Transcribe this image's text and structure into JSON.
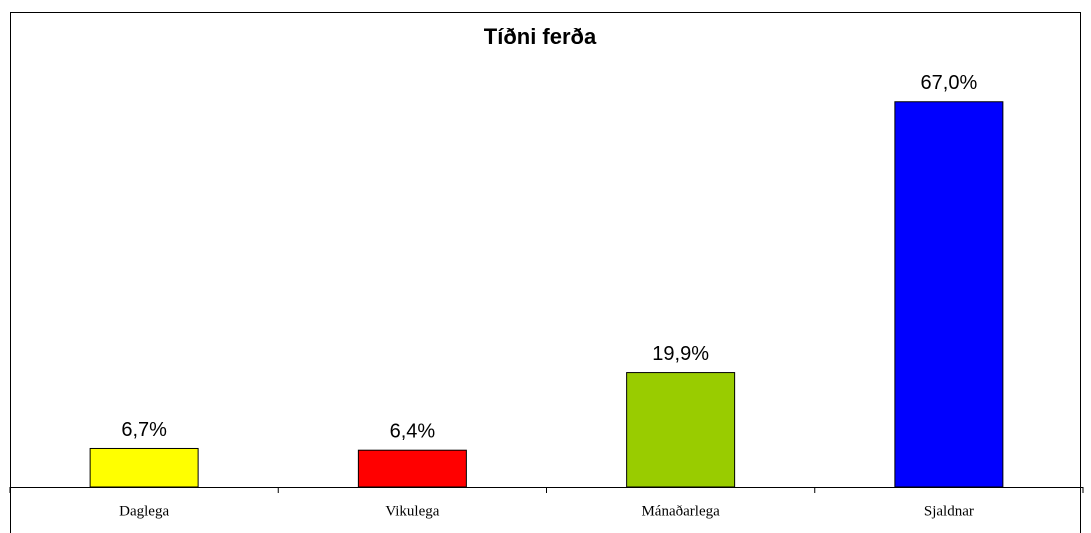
{
  "chart_data": {
    "type": "bar",
    "title": "Tíðni ferða",
    "categories": [
      "Daglega",
      "Vikulega",
      "Mánaðarlega",
      "Sjaldnar"
    ],
    "values": [
      6.7,
      6.4,
      19.9,
      67.0
    ],
    "value_labels": [
      "6,7%",
      "6,4%",
      "19,9%",
      "67,0%"
    ],
    "colors": [
      "#ffff00",
      "#ff0000",
      "#99cc00",
      "#0000ff"
    ],
    "ylim": [
      0,
      80
    ],
    "grid": false
  }
}
